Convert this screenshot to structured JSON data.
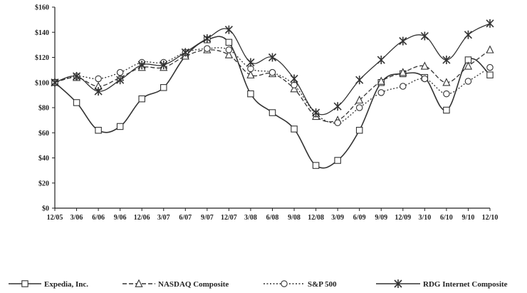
{
  "chart_data": {
    "type": "line",
    "title": "",
    "xlabel": "",
    "ylabel": "",
    "categories": [
      "12/05",
      "3/06",
      "6/06",
      "9/06",
      "12/06",
      "3/07",
      "6/07",
      "9/07",
      "12/07",
      "3/08",
      "6/08",
      "9/08",
      "12/08",
      "3/09",
      "6/09",
      "9/09",
      "12/09",
      "3/10",
      "6/10",
      "9/10",
      "12/10"
    ],
    "ylim": [
      0,
      160
    ],
    "yticks": [
      0,
      20,
      40,
      60,
      80,
      100,
      120,
      140,
      160
    ],
    "ytick_labels": [
      "$0",
      "$20",
      "$40",
      "$60",
      "$80",
      "$100",
      "$120",
      "$140",
      "$160"
    ],
    "grid": false,
    "legend_position": "bottom",
    "series": [
      {
        "name": "Expedia, Inc.",
        "marker": "square",
        "dash": "solid",
        "values": [
          100,
          84,
          62,
          65,
          87,
          96,
          121,
          134,
          132,
          91,
          76,
          63,
          34,
          38,
          62,
          100,
          107,
          104,
          78,
          118,
          106
        ]
      },
      {
        "name": "NASDAQ Composite",
        "marker": "triangle",
        "dash": "dashed",
        "values": [
          100,
          104,
          97,
          104,
          112,
          112,
          121,
          126,
          122,
          106,
          107,
          95,
          73,
          70,
          86,
          101,
          108,
          113,
          100,
          113,
          126
        ]
      },
      {
        "name": "S&P 500",
        "marker": "circle",
        "dash": "dotted",
        "values": [
          100,
          105,
          103,
          108,
          116,
          116,
          124,
          127,
          126,
          111,
          108,
          98,
          75,
          68,
          80,
          92,
          97,
          103,
          91,
          101,
          112
        ]
      },
      {
        "name": "RDG Internet Composite",
        "marker": "star",
        "dash": "solid",
        "values": [
          100,
          105,
          93,
          102,
          114,
          114,
          124,
          135,
          142,
          116,
          120,
          103,
          76,
          81,
          102,
          118,
          133,
          137,
          118,
          138,
          147
        ]
      }
    ],
    "colors": {
      "line": "#333333"
    }
  }
}
